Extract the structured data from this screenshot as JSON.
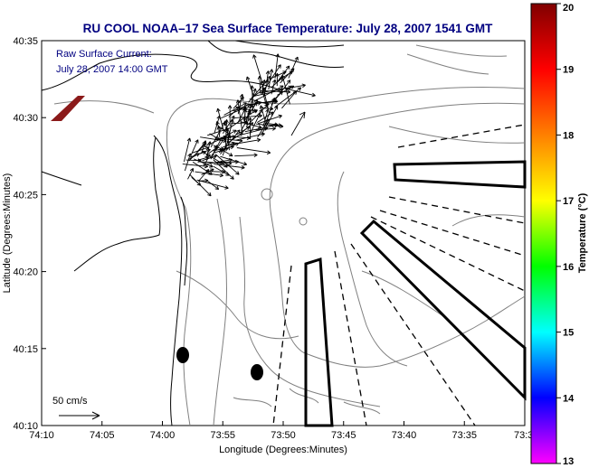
{
  "title": "RU COOL  NOAA–17  Sea Surface Temperature:  July 28, 2007 1541 GMT",
  "annotation": {
    "line1": "Raw Surface Current:",
    "line2": "July 28, 2007 14:00 GMT"
  },
  "scale_label": "50 cm/s",
  "x_axis": {
    "label": "Longitude (Degrees:Minutes)",
    "ticks": [
      "74:10",
      "74:05",
      "74:00",
      "73:55",
      "73:50",
      "73:45",
      "73:40",
      "73:35",
      "73:3"
    ]
  },
  "y_axis": {
    "label": "Latitude (Degrees:Minutes)",
    "ticks": [
      "40:35",
      "40:30",
      "40:25",
      "40:20",
      "40:15",
      "40:10"
    ]
  },
  "colorbar": {
    "label": "Temperature (°C)",
    "min": 13,
    "max": 20,
    "ticks": [
      "20",
      "19",
      "18",
      "17",
      "16",
      "15",
      "14",
      "13"
    ],
    "gradient_colors": [
      "#ff00ff",
      "#0000ff",
      "#00ffff",
      "#00ff00",
      "#ffff00",
      "#ff8000",
      "#ff0000",
      "#800000"
    ]
  },
  "colors": {
    "title": "#000080",
    "land_outline": "#000000",
    "bathymetry": "#808080",
    "flag": "#8b1a1a"
  }
}
